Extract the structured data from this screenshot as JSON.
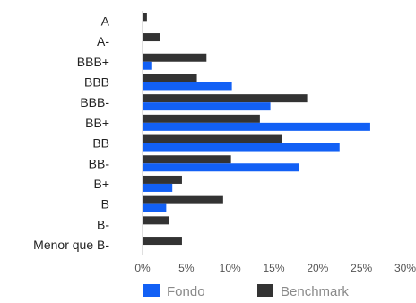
{
  "chart_data": {
    "type": "bar",
    "orientation": "horizontal",
    "categories": [
      "A",
      "A-",
      "BBB+",
      "BBB",
      "BBB-",
      "BB+",
      "BB",
      "BB-",
      "B+",
      "B",
      "B-",
      "Menor que B-"
    ],
    "series": [
      {
        "name": "Fondo",
        "color": "#1260f5",
        "values": [
          0,
          0,
          1.0,
          10.2,
          14.6,
          26.0,
          22.5,
          17.9,
          3.4,
          2.7,
          0,
          0
        ]
      },
      {
        "name": "Benchmark",
        "color": "#333333",
        "values": [
          0.5,
          2.0,
          7.3,
          6.2,
          18.8,
          13.4,
          15.9,
          10.1,
          4.5,
          9.2,
          3.0,
          4.5
        ]
      }
    ],
    "xlim": [
      0,
      30
    ],
    "xticks": [
      0,
      5,
      10,
      15,
      20,
      25,
      30
    ],
    "tick_suffix": "%",
    "legend_position": "bottom",
    "grid": false
  }
}
